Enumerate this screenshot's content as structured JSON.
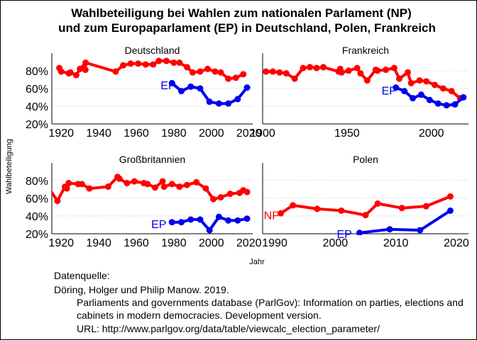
{
  "chart_data": {
    "type": "line",
    "title_lines": [
      "Wahlbeteiligung bei Wahlen zum nationalen Parlament (NP)",
      "und zum Europaparlament (EP) in Deutschland, Polen, Frankreich"
    ],
    "xlabel": "Jahr",
    "ylabel": "Wahlbeteiligung",
    "y_ticks": [
      "20%",
      "40%",
      "60%",
      "80%"
    ],
    "y_range": [
      0.2,
      0.95
    ],
    "grid": "horizontal dotted",
    "colors": {
      "NP": "#ff0000",
      "EP": "#0000ee"
    },
    "source": {
      "heading": "Datenquelle:",
      "lines": [
        "Döring, Holger und Philip Manow. 2019.",
        "Parliaments and governments database (ParlGov): Information on parties, elections and",
        "cabinets in modern democracies. Development version.",
        "URL: http://www.parlgov.org/data/table/viewcalc_election_parameter/"
      ]
    },
    "panels": [
      {
        "name": "Deutschland",
        "x_range": [
          1915,
          2022
        ],
        "x_ticks": [
          1920,
          1940,
          1960,
          1980,
          2000,
          2020
        ],
        "labels": [
          {
            "text": "EP",
            "series": "EP",
            "x": 1977,
            "y": 0.64
          }
        ],
        "series": [
          {
            "key": "NP",
            "points": [
              [
                1919,
                0.83
              ],
              [
                1920,
                0.79
              ],
              [
                1924,
                0.77
              ],
              [
                1924.9,
                0.78
              ],
              [
                1928,
                0.75
              ],
              [
                1930,
                0.82
              ],
              [
                1932,
                0.84
              ],
              [
                1932.9,
                0.81
              ],
              [
                1933,
                0.89
              ],
              [
                1949,
                0.79
              ],
              [
                1953,
                0.86
              ],
              [
                1957,
                0.88
              ],
              [
                1961,
                0.88
              ],
              [
                1965,
                0.87
              ],
              [
                1969,
                0.87
              ],
              [
                1972,
                0.91
              ],
              [
                1976,
                0.91
              ],
              [
                1980,
                0.89
              ],
              [
                1983,
                0.89
              ],
              [
                1987,
                0.84
              ],
              [
                1990,
                0.78
              ],
              [
                1994,
                0.79
              ],
              [
                1998,
                0.82
              ],
              [
                2002,
                0.79
              ],
              [
                2005,
                0.78
              ],
              [
                2009,
                0.71
              ],
              [
                2013,
                0.72
              ],
              [
                2017,
                0.76
              ]
            ]
          },
          {
            "key": "EP",
            "points": [
              [
                1979,
                0.66
              ],
              [
                1984,
                0.57
              ],
              [
                1989,
                0.62
              ],
              [
                1994,
                0.6
              ],
              [
                1999,
                0.45
              ],
              [
                2004,
                0.43
              ],
              [
                2009,
                0.43
              ],
              [
                2014,
                0.48
              ],
              [
                2019,
                0.61
              ]
            ]
          }
        ]
      },
      {
        "name": "Frankreich",
        "x_range": [
          1900,
          2022
        ],
        "x_ticks": [
          1900,
          1950,
          2000
        ],
        "labels": [
          {
            "text": "EP",
            "series": "EP",
            "x": 1975,
            "y": 0.58
          }
        ],
        "series": [
          {
            "key": "NP",
            "points": [
              [
                1902,
                0.79
              ],
              [
                1906,
                0.79
              ],
              [
                1910,
                0.78
              ],
              [
                1914,
                0.77
              ],
              [
                1919,
                0.71
              ],
              [
                1924,
                0.83
              ],
              [
                1928,
                0.84
              ],
              [
                1932,
                0.83
              ],
              [
                1936,
                0.84
              ],
              [
                1945,
                0.79
              ],
              [
                1946,
                0.82
              ],
              [
                1946.8,
                0.78
              ],
              [
                1951,
                0.8
              ],
              [
                1956,
                0.83
              ],
              [
                1958,
                0.77
              ],
              [
                1962,
                0.69
              ],
              [
                1967,
                0.81
              ],
              [
                1968,
                0.8
              ],
              [
                1973,
                0.81
              ],
              [
                1978,
                0.83
              ],
              [
                1981,
                0.71
              ],
              [
                1986,
                0.78
              ],
              [
                1988,
                0.66
              ],
              [
                1993,
                0.69
              ],
              [
                1997,
                0.68
              ],
              [
                2002,
                0.64
              ],
              [
                2007,
                0.6
              ],
              [
                2012,
                0.57
              ],
              [
                2017,
                0.49
              ]
            ]
          },
          {
            "key": "EP",
            "points": [
              [
                1979,
                0.61
              ],
              [
                1984,
                0.57
              ],
              [
                1989,
                0.49
              ],
              [
                1994,
                0.53
              ],
              [
                1999,
                0.47
              ],
              [
                2004,
                0.43
              ],
              [
                2009,
                0.41
              ],
              [
                2014,
                0.42
              ],
              [
                2019,
                0.5
              ]
            ]
          }
        ]
      },
      {
        "name": "Großbritannien",
        "x_range": [
          1915,
          2022
        ],
        "x_ticks": [
          1920,
          1940,
          1960,
          1980,
          2000,
          2020
        ],
        "labels": [
          {
            "text": "EP",
            "series": "EP",
            "x": 1972,
            "y": 0.31
          }
        ],
        "series": [
          {
            "key": "NP",
            "points": [
              [
                1910,
                0.82
              ],
              [
                1918,
                0.57
              ],
              [
                1922,
                0.73
              ],
              [
                1923,
                0.71
              ],
              [
                1924,
                0.77
              ],
              [
                1929,
                0.76
              ],
              [
                1931,
                0.76
              ],
              [
                1935,
                0.71
              ],
              [
                1945,
                0.73
              ],
              [
                1950,
                0.84
              ],
              [
                1951,
                0.82
              ],
              [
                1955,
                0.77
              ],
              [
                1959,
                0.79
              ],
              [
                1964,
                0.77
              ],
              [
                1966,
                0.76
              ],
              [
                1970,
                0.72
              ],
              [
                1974,
                0.79
              ],
              [
                1974.8,
                0.73
              ],
              [
                1979,
                0.76
              ],
              [
                1983,
                0.73
              ],
              [
                1987,
                0.75
              ],
              [
                1992,
                0.78
              ],
              [
                1997,
                0.71
              ],
              [
                2001,
                0.59
              ],
              [
                2005,
                0.61
              ],
              [
                2010,
                0.65
              ],
              [
                2015,
                0.66
              ],
              [
                2017,
                0.69
              ],
              [
                2019,
                0.67
              ]
            ]
          },
          {
            "key": "EP",
            "points": [
              [
                1979,
                0.33
              ],
              [
                1984,
                0.33
              ],
              [
                1989,
                0.36
              ],
              [
                1994,
                0.36
              ],
              [
                1999,
                0.24
              ],
              [
                2004,
                0.39
              ],
              [
                2009,
                0.35
              ],
              [
                2014,
                0.35
              ],
              [
                2019,
                0.37
              ]
            ]
          }
        ]
      },
      {
        "name": "Polen",
        "x_range": [
          1988,
          2022
        ],
        "x_ticks": [
          1990,
          2000,
          2010,
          2020
        ],
        "labels": [
          {
            "text": "NP",
            "series": "NP",
            "x": 1989.5,
            "y": 0.41
          },
          {
            "text": "EP",
            "series": "EP",
            "x": 2001.5,
            "y": 0.2
          }
        ],
        "series": [
          {
            "key": "NP",
            "points": [
              [
                1991,
                0.43
              ],
              [
                1993,
                0.52
              ],
              [
                1997,
                0.48
              ],
              [
                2001,
                0.46
              ],
              [
                2005,
                0.41
              ],
              [
                2007,
                0.54
              ],
              [
                2011,
                0.49
              ],
              [
                2015,
                0.51
              ],
              [
                2019,
                0.62
              ]
            ]
          },
          {
            "key": "EP",
            "points": [
              [
                2004,
                0.21
              ],
              [
                2009,
                0.25
              ],
              [
                2014,
                0.24
              ],
              [
                2019,
                0.46
              ]
            ]
          }
        ]
      }
    ]
  }
}
